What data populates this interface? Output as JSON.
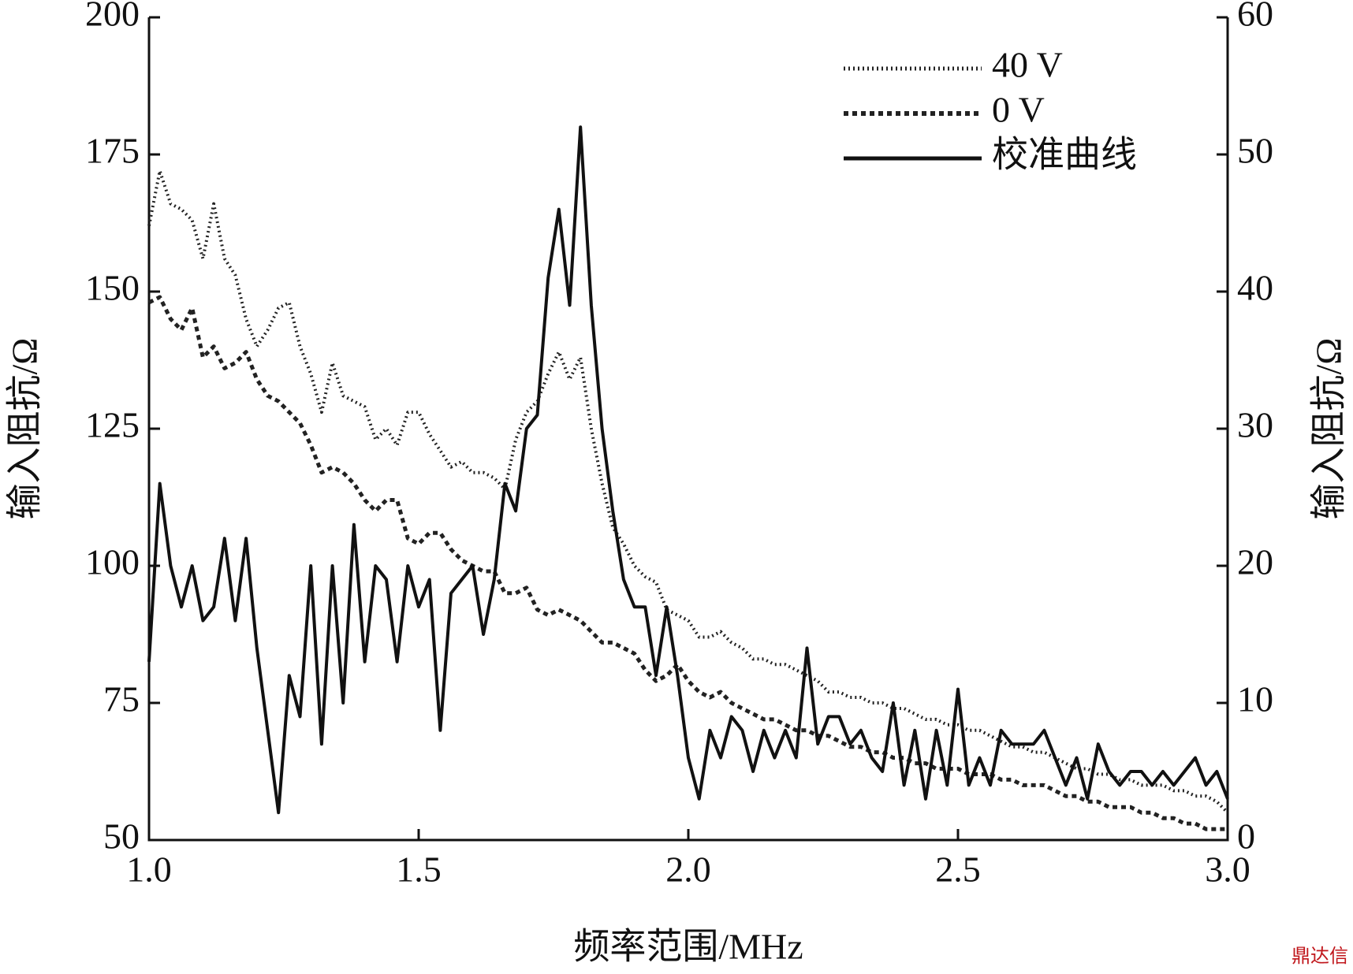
{
  "chart_data": {
    "type": "line",
    "xlabel": "频率范围/MHz",
    "ylabel": "输入阻抗/Ω",
    "y2label": "输入阻抗/Ω",
    "x": [
      1.0,
      1.02,
      1.04,
      1.06,
      1.08,
      1.1,
      1.12,
      1.14,
      1.16,
      1.18,
      1.2,
      1.22,
      1.24,
      1.26,
      1.28,
      1.3,
      1.32,
      1.34,
      1.36,
      1.38,
      1.4,
      1.42,
      1.44,
      1.46,
      1.48,
      1.5,
      1.52,
      1.54,
      1.56,
      1.58,
      1.6,
      1.62,
      1.64,
      1.66,
      1.68,
      1.7,
      1.72,
      1.74,
      1.76,
      1.78,
      1.8,
      1.82,
      1.84,
      1.86,
      1.88,
      1.9,
      1.92,
      1.94,
      1.96,
      1.98,
      2.0,
      2.02,
      2.04,
      2.06,
      2.08,
      2.1,
      2.12,
      2.14,
      2.16,
      2.18,
      2.2,
      2.22,
      2.24,
      2.26,
      2.28,
      2.3,
      2.32,
      2.34,
      2.36,
      2.38,
      2.4,
      2.42,
      2.44,
      2.46,
      2.48,
      2.5,
      2.52,
      2.54,
      2.56,
      2.58,
      2.6,
      2.62,
      2.64,
      2.66,
      2.68,
      2.7,
      2.72,
      2.74,
      2.76,
      2.78,
      2.8,
      2.82,
      2.84,
      2.86,
      2.88,
      2.9,
      2.92,
      2.94,
      2.96,
      2.98,
      3.0
    ],
    "series": [
      {
        "name": "40 V",
        "color": "#222222",
        "style": "dotted",
        "axis": "y",
        "values": [
          162,
          172,
          166,
          165,
          163,
          156,
          166,
          156,
          153,
          145,
          140,
          143,
          147,
          148,
          140,
          135,
          128,
          137,
          131,
          130,
          129,
          123,
          125,
          122,
          128,
          128,
          124,
          121,
          118,
          119,
          117,
          117,
          116,
          114,
          123,
          128,
          130,
          135,
          139,
          134,
          138,
          125,
          115,
          107,
          104,
          100,
          98,
          97,
          92,
          91,
          90,
          87,
          87,
          88,
          86,
          85,
          83,
          83,
          82,
          82,
          81,
          80,
          79,
          77,
          77,
          76,
          76,
          75,
          75,
          74,
          74,
          73,
          72,
          72,
          71,
          71,
          70,
          70,
          69,
          68,
          67,
          67,
          66,
          66,
          65,
          64,
          63,
          63,
          62,
          62,
          61,
          61,
          60,
          60,
          60,
          59,
          59,
          58,
          58,
          57,
          55
        ]
      },
      {
        "name": "0 V",
        "color": "#222222",
        "style": "dashed",
        "axis": "y",
        "values": [
          148,
          149,
          145,
          143,
          147,
          138,
          140,
          136,
          137,
          139,
          134,
          131,
          130,
          128,
          126,
          122,
          117,
          118,
          117,
          115,
          112,
          110,
          112,
          112,
          105,
          104,
          106,
          106,
          103,
          101,
          100,
          99,
          99,
          95,
          95,
          96,
          92,
          91,
          92,
          91,
          90,
          88,
          86,
          86,
          85,
          84,
          81,
          79,
          80,
          82,
          79,
          77,
          76,
          77,
          75,
          74,
          73,
          72,
          72,
          71,
          70,
          70,
          69,
          69,
          68,
          67,
          67,
          66,
          66,
          65,
          65,
          64,
          64,
          63,
          63,
          63,
          62,
          62,
          62,
          61,
          61,
          60,
          60,
          60,
          59,
          58,
          58,
          57,
          57,
          56,
          56,
          56,
          55,
          55,
          54,
          54,
          53,
          53,
          52,
          52,
          52
        ]
      },
      {
        "name": "校准曲线",
        "color": "#111111",
        "style": "solid",
        "axis": "y2",
        "values": [
          13,
          26,
          20,
          17,
          20,
          16,
          17,
          22,
          16,
          22,
          14,
          8,
          2,
          12,
          9,
          20,
          7,
          20,
          10,
          23,
          13,
          20,
          19,
          13,
          20,
          17,
          19,
          8,
          18,
          19,
          20,
          15,
          19,
          26,
          24,
          30,
          31,
          41,
          46,
          39,
          52,
          39,
          30,
          24,
          19,
          17,
          17,
          12,
          17,
          12,
          6,
          3,
          8,
          6,
          9,
          8,
          5,
          8,
          6,
          8,
          6,
          14,
          7,
          9,
          9,
          7,
          8,
          6,
          5,
          10,
          4,
          8,
          3,
          8,
          4,
          11,
          4,
          6,
          4,
          8,
          7,
          7,
          7,
          8,
          6,
          4,
          6,
          3,
          7,
          5,
          4,
          5,
          5,
          4,
          5,
          4,
          5,
          6,
          4,
          5,
          3
        ]
      }
    ],
    "xlim": [
      1,
      3
    ],
    "xticks": [
      {
        "value": 1,
        "label": "1.0"
      },
      {
        "value": 1.5,
        "label": "1.5"
      },
      {
        "value": 2,
        "label": "2.0"
      },
      {
        "value": 2.5,
        "label": "2.5"
      },
      {
        "value": 3,
        "label": "3.0"
      }
    ],
    "ylim": [
      50,
      200
    ],
    "yticks": [
      50,
      75,
      100,
      125,
      150,
      175,
      200
    ],
    "y2lim": [
      0,
      60
    ],
    "y2ticks": [
      0,
      10,
      20,
      30,
      40,
      50,
      60
    ],
    "grid": false,
    "legend": "upper right"
  },
  "watermark": "鼎达信"
}
